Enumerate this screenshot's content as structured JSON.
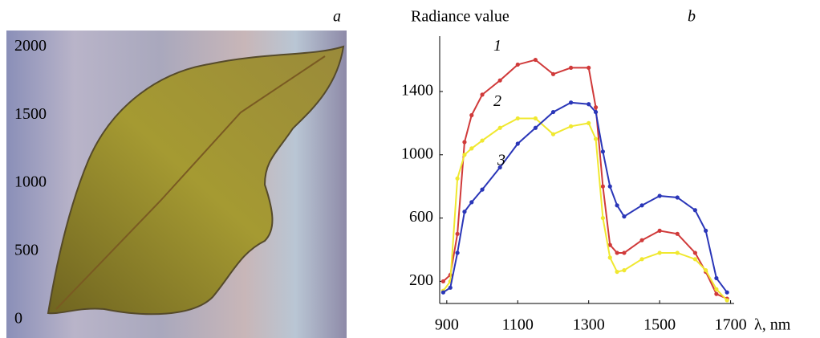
{
  "chart_data": [
    {
      "type": "image",
      "panel": "a",
      "ylim": [
        -130,
        2120
      ],
      "yticks": [
        0,
        500,
        1000,
        1500,
        2000
      ]
    },
    {
      "type": "line",
      "panel": "b",
      "y_label": "Radiance value",
      "x_label": "λ, nm",
      "xlim": [
        880,
        1710
      ],
      "xticks": [
        900,
        1100,
        1300,
        1500,
        1700
      ],
      "ylim": [
        60,
        1750
      ],
      "yticks": [
        200,
        600,
        1000,
        1400
      ],
      "x": [
        890,
        910,
        930,
        950,
        970,
        1000,
        1050,
        1100,
        1150,
        1200,
        1250,
        1300,
        1320,
        1340,
        1360,
        1380,
        1400,
        1450,
        1500,
        1550,
        1600,
        1630,
        1660,
        1690
      ],
      "series": [
        {
          "name": "1",
          "color": "#d03a3a",
          "values": [
            200,
            240,
            500,
            1080,
            1250,
            1380,
            1470,
            1570,
            1600,
            1510,
            1550,
            1550,
            1300,
            800,
            430,
            380,
            380,
            460,
            520,
            500,
            380,
            260,
            120,
            90
          ]
        },
        {
          "name": "2",
          "color": "#f0e830",
          "values": [
            140,
            200,
            850,
            1000,
            1040,
            1090,
            1170,
            1230,
            1230,
            1130,
            1180,
            1200,
            1100,
            600,
            350,
            260,
            270,
            340,
            380,
            380,
            340,
            270,
            150,
            80
          ]
        },
        {
          "name": "3",
          "color": "#2a36b8",
          "values": [
            130,
            160,
            380,
            640,
            700,
            780,
            920,
            1070,
            1170,
            1270,
            1330,
            1320,
            1270,
            1020,
            800,
            680,
            610,
            680,
            740,
            730,
            650,
            520,
            220,
            130
          ]
        }
      ]
    }
  ]
}
